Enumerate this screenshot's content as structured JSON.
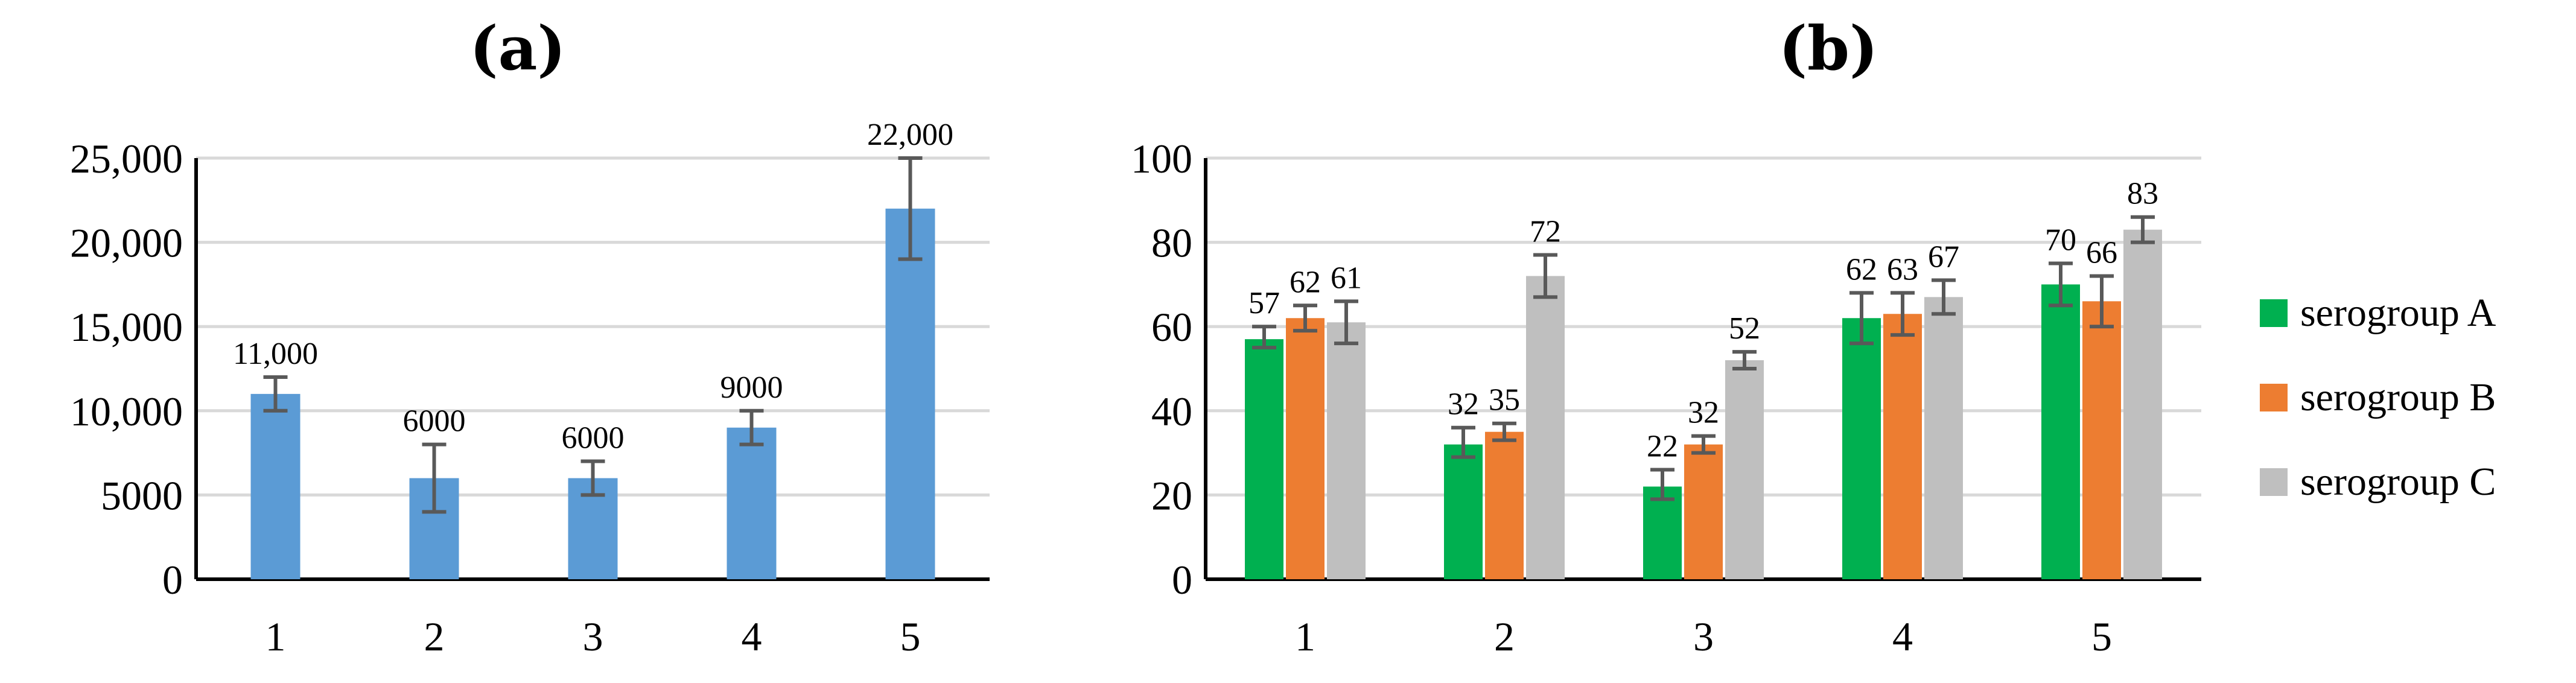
{
  "chart_data": [
    {
      "type": "bar",
      "title": "(a)",
      "categories": [
        "1",
        "2",
        "3",
        "4",
        "5"
      ],
      "series": [
        {
          "values": [
            11000,
            6000,
            6000,
            9000,
            22000
          ],
          "labels": [
            "11,000",
            "6000",
            "6000",
            "9000",
            "22,000"
          ],
          "error_low": [
            10000,
            4000,
            5000,
            8000,
            19000
          ],
          "error_high": [
            12000,
            8000,
            7000,
            10000,
            25000
          ],
          "color": "#5b9bd5"
        }
      ],
      "ylim": [
        0,
        25000
      ],
      "yticks": [
        0,
        5000,
        10000,
        15000,
        20000,
        25000
      ],
      "ytick_labels": [
        "0",
        "5000",
        "10,000",
        "15,000",
        "20,000",
        "25,000"
      ],
      "grid": true,
      "legend": "none"
    },
    {
      "type": "bar",
      "title": "(b)",
      "categories": [
        "1",
        "2",
        "3",
        "4",
        "5"
      ],
      "series": [
        {
          "name": "serogroup A",
          "color": "#00b050",
          "values": [
            57,
            32,
            22,
            62,
            70
          ],
          "error_low": [
            55,
            29,
            19,
            56,
            65
          ],
          "error_high": [
            60,
            36,
            26,
            68,
            75
          ]
        },
        {
          "name": "serogroup B",
          "color": "#ed7d31",
          "values": [
            62,
            35,
            32,
            63,
            66
          ],
          "error_low": [
            59,
            33,
            30,
            58,
            60
          ],
          "error_high": [
            65,
            37,
            34,
            68,
            72
          ]
        },
        {
          "name": "serogroup C",
          "color": "#bfbfbf",
          "values": [
            61,
            72,
            52,
            67,
            83
          ],
          "error_low": [
            56,
            67,
            50,
            63,
            80
          ],
          "error_high": [
            66,
            77,
            54,
            71,
            86
          ]
        }
      ],
      "ylim": [
        0,
        100
      ],
      "yticks": [
        0,
        20,
        40,
        60,
        80,
        100
      ],
      "ytick_labels": [
        "0",
        "20",
        "40",
        "60",
        "80",
        "100"
      ],
      "grid": true,
      "legend": "right"
    }
  ]
}
